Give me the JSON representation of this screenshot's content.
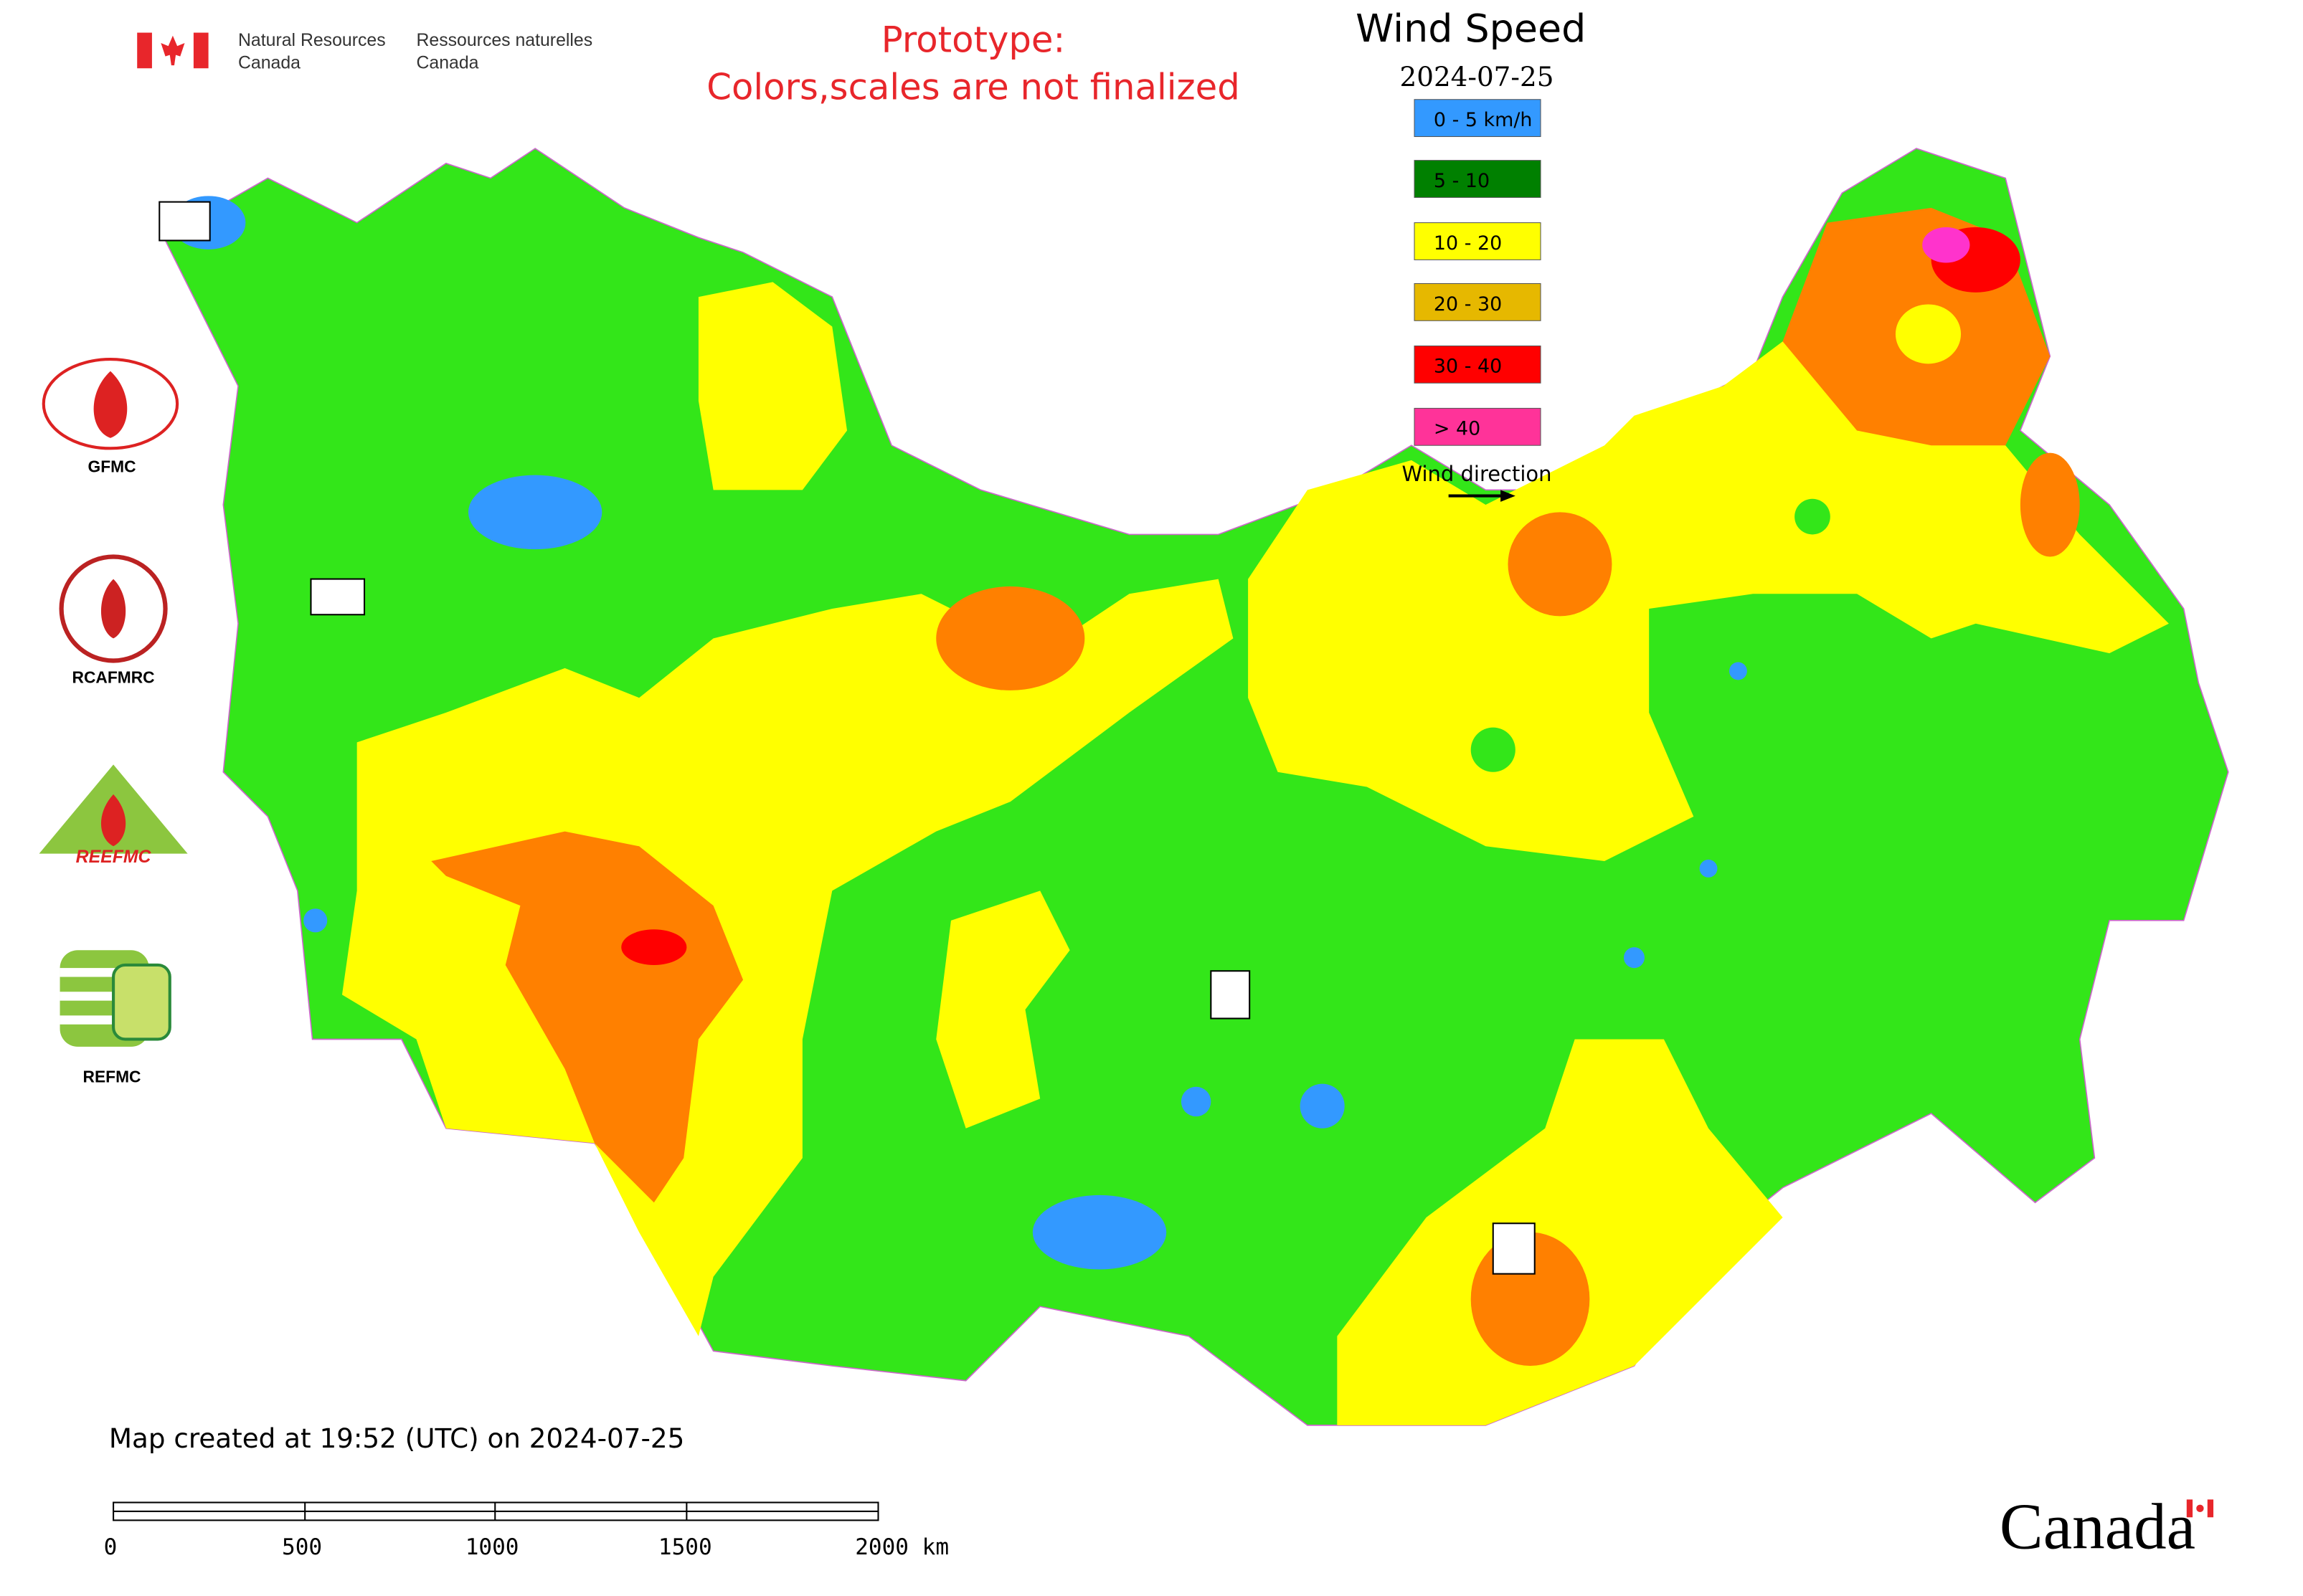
{
  "header": {
    "agency_en": [
      "Natural Resources",
      "Canada"
    ],
    "agency_fr": [
      "Ressources naturelles",
      "Canada"
    ],
    "notice": [
      "Prototype:",
      "Colors,scales are not finalized"
    ]
  },
  "legend": {
    "title": "Wind Speed",
    "date": "2024-07-25",
    "items": [
      {
        "label": "0 - 5 km/h",
        "color": "#3399ff"
      },
      {
        "label": "5 - 10",
        "color": "#008000"
      },
      {
        "label": "10 - 20",
        "color": "#ffff00"
      },
      {
        "label": "20 - 30",
        "color": "#e6b800"
      },
      {
        "label": "30 - 40",
        "color": "#ff0000"
      },
      {
        "label": "> 40",
        "color": "#ff3399"
      }
    ],
    "direction": "Wind direction"
  },
  "logos": {
    "labels": [
      "GFMC",
      "RCAFMRC",
      "REFMC"
    ],
    "reefmc_text": "REEFMC"
  },
  "footer": {
    "created": "Map created at 19:52 (UTC) on 2024-07-25",
    "scale": [
      "0",
      "500",
      "1000",
      "1500",
      "2000 km"
    ],
    "wordmark": "Canada"
  }
}
